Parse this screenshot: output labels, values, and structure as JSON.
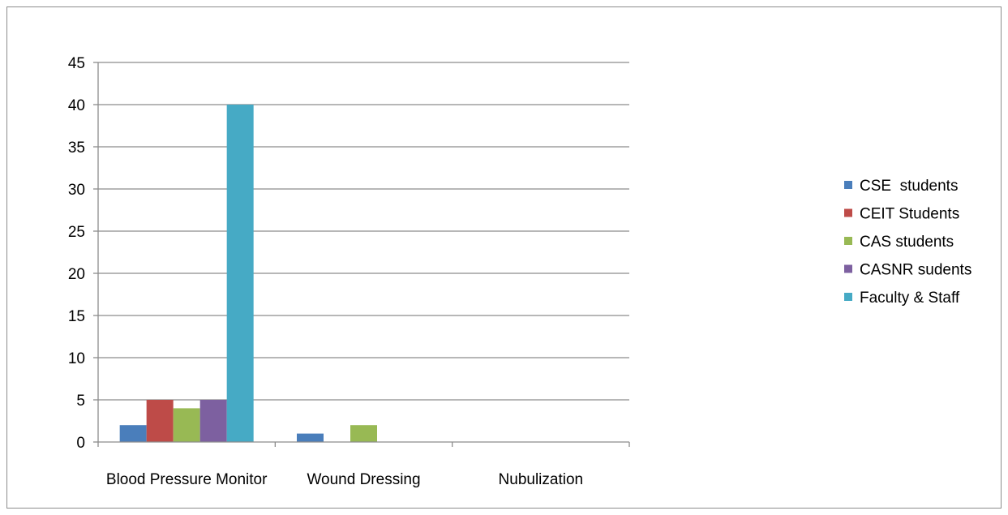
{
  "chart_data": {
    "type": "bar",
    "title": "",
    "xlabel": "",
    "ylabel": "",
    "categories": [
      "Blood Pressure Monitor",
      "Wound Dressing",
      "Nubulization"
    ],
    "series": [
      {
        "name": "CSE  students",
        "color": "#4a7ebb",
        "values": [
          2,
          1,
          0
        ]
      },
      {
        "name": "CEIT Students",
        "color": "#be4b48",
        "values": [
          5,
          0,
          0
        ]
      },
      {
        "name": "CAS students",
        "color": "#98b954",
        "values": [
          4,
          2,
          0
        ]
      },
      {
        "name": "CASNR sudents",
        "color": "#7d60a0",
        "values": [
          5,
          0,
          0
        ]
      },
      {
        "name": "Faculty & Staff",
        "color": "#46aac5",
        "values": [
          40,
          0,
          0
        ]
      }
    ],
    "ylim": [
      0,
      45
    ],
    "yticks": [
      0,
      5,
      10,
      15,
      20,
      25,
      30,
      35,
      40,
      45
    ],
    "grid": true,
    "legend_position": "right"
  }
}
